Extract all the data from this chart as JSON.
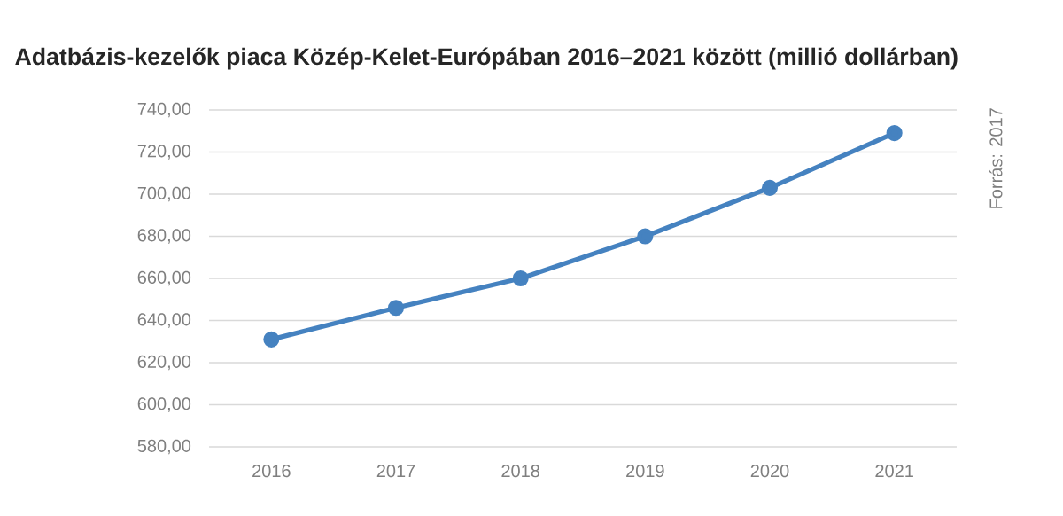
{
  "chart_data": {
    "type": "line",
    "title": "Adatbázis-kezelők piaca Közép-Kelet-Európában 2016–2021 között (millió dollárban)",
    "categories": [
      "2016",
      "2017",
      "2018",
      "2019",
      "2020",
      "2021"
    ],
    "series": [
      {
        "color": "#4582c0",
        "values": [
          631,
          646,
          660,
          680,
          703,
          729
        ]
      }
    ],
    "ylim": [
      580,
      740
    ],
    "yticks": [
      {
        "value": 580,
        "label": "580,00"
      },
      {
        "value": 600,
        "label": "600,00"
      },
      {
        "value": 620,
        "label": "620,00"
      },
      {
        "value": 640,
        "label": "640,00"
      },
      {
        "value": 660,
        "label": "660,00"
      },
      {
        "value": 680,
        "label": "680,00"
      },
      {
        "value": 700,
        "label": "700,00"
      },
      {
        "value": 720,
        "label": "720,00"
      },
      {
        "value": 740,
        "label": "740,00"
      }
    ],
    "grid": "y",
    "marker": "circle",
    "annotations": [
      "Forrás: 2017"
    ]
  }
}
